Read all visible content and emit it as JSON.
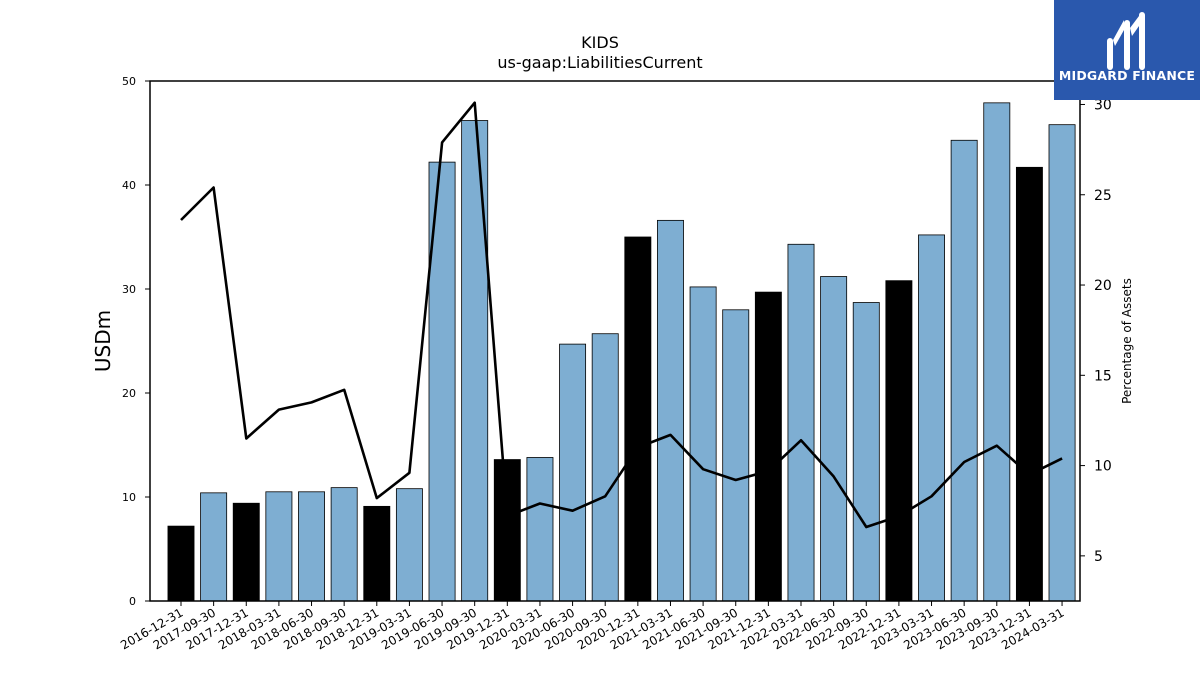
{
  "chart_data": {
    "type": "bar",
    "title": "KIDS",
    "subtitle": "us-gaap:LiabilitiesCurrent",
    "ylabel": "USDm",
    "y2label": "Percentage of Assets",
    "ylim": [
      0,
      50
    ],
    "y2lim": [
      2.5,
      31.3
    ],
    "yticks": [
      0,
      10,
      20,
      30,
      40,
      50
    ],
    "y2ticks": [
      5,
      10,
      15,
      20,
      25,
      30
    ],
    "categories": [
      "2016-12-31",
      "2017-09-30",
      "2017-12-31",
      "2018-03-31",
      "2018-06-30",
      "2018-09-30",
      "2018-12-31",
      "2019-03-31",
      "2019-06-30",
      "2019-09-30",
      "2019-12-31",
      "2020-03-31",
      "2020-06-30",
      "2020-09-30",
      "2020-12-31",
      "2021-03-31",
      "2021-06-30",
      "2021-09-30",
      "2021-12-31",
      "2022-03-31",
      "2022-06-30",
      "2022-09-30",
      "2022-12-31",
      "2023-03-31",
      "2023-06-30",
      "2023-09-30",
      "2023-12-31",
      "2024-03-31"
    ],
    "series": [
      {
        "kind": "bar",
        "values": [
          7.2,
          10.4,
          9.4,
          10.5,
          10.5,
          10.9,
          9.1,
          10.8,
          42.2,
          46.2,
          13.6,
          13.8,
          24.7,
          25.7,
          35.0,
          36.6,
          30.2,
          28.0,
          29.7,
          34.3,
          31.2,
          28.7,
          30.8,
          35.2,
          44.3,
          47.9,
          41.7,
          45.8
        ],
        "highlight": [
          true,
          false,
          true,
          false,
          false,
          false,
          true,
          false,
          false,
          false,
          true,
          false,
          false,
          false,
          true,
          false,
          false,
          false,
          true,
          false,
          false,
          false,
          true,
          false,
          false,
          false,
          true,
          false
        ]
      },
      {
        "kind": "line",
        "axis": "right",
        "values": [
          23.6,
          25.4,
          11.5,
          13.1,
          13.5,
          14.2,
          8.2,
          9.6,
          27.9,
          30.1,
          7.2,
          7.9,
          7.5,
          8.3,
          11.0,
          11.7,
          9.8,
          9.2,
          9.7,
          11.4,
          9.4,
          6.6,
          7.2,
          8.3,
          10.2,
          11.1,
          9.5,
          10.4
        ]
      }
    ],
    "colors": {
      "bar": "#7eaed2",
      "bar_highlight": "#000000",
      "line": "#000000"
    },
    "grid": false
  },
  "logo": {
    "text": "MIDGARD FINANCE",
    "background": "#2a58ad"
  }
}
